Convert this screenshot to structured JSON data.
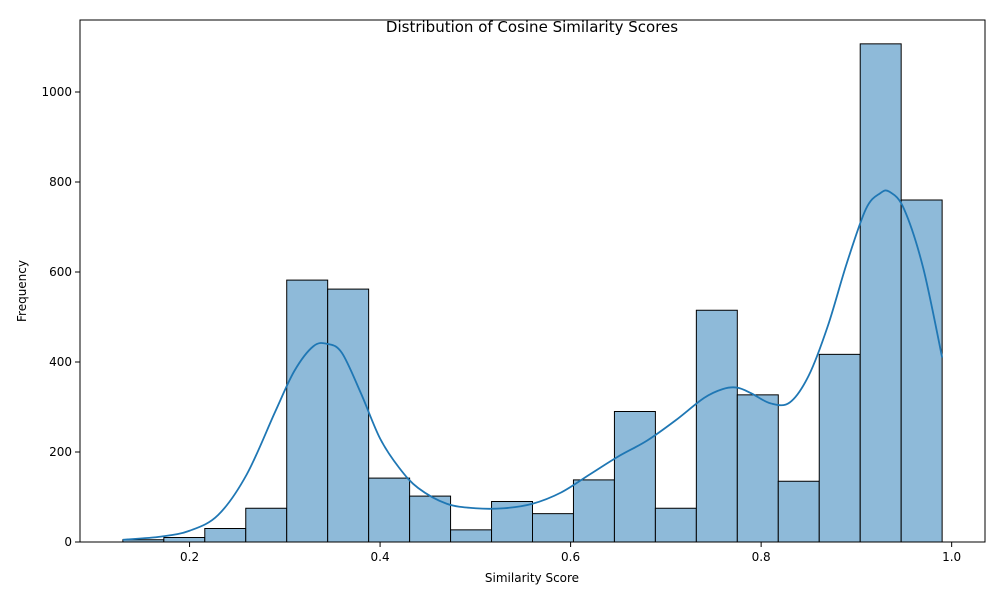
{
  "chart_data": {
    "type": "histogram",
    "title": "Distribution of Cosine Similarity Scores",
    "xlabel": "Similarity Score",
    "ylabel": "Frequency",
    "xlim": [
      0.085,
      1.035
    ],
    "ylim": [
      0,
      1160
    ],
    "xticks": [
      0.2,
      0.4,
      0.6,
      0.8,
      1.0
    ],
    "xtick_labels": [
      "0.2",
      "0.4",
      "0.6",
      "0.8",
      "1.0"
    ],
    "yticks": [
      0,
      200,
      400,
      600,
      800,
      1000
    ],
    "ytick_labels": [
      "0",
      "200",
      "400",
      "600",
      "800",
      "1000"
    ],
    "bar_color": "#8ebad9",
    "kde_color": "#1f77b4",
    "bins": [
      {
        "x0": 0.13,
        "x1": 0.173,
        "count": 5
      },
      {
        "x0": 0.173,
        "x1": 0.216,
        "count": 10
      },
      {
        "x0": 0.216,
        "x1": 0.259,
        "count": 30
      },
      {
        "x0": 0.259,
        "x1": 0.302,
        "count": 75
      },
      {
        "x0": 0.302,
        "x1": 0.345,
        "count": 582
      },
      {
        "x0": 0.345,
        "x1": 0.388,
        "count": 562
      },
      {
        "x0": 0.388,
        "x1": 0.431,
        "count": 142
      },
      {
        "x0": 0.431,
        "x1": 0.474,
        "count": 102
      },
      {
        "x0": 0.474,
        "x1": 0.517,
        "count": 27
      },
      {
        "x0": 0.517,
        "x1": 0.56,
        "count": 90
      },
      {
        "x0": 0.56,
        "x1": 0.603,
        "count": 63
      },
      {
        "x0": 0.603,
        "x1": 0.646,
        "count": 138
      },
      {
        "x0": 0.646,
        "x1": 0.689,
        "count": 290
      },
      {
        "x0": 0.689,
        "x1": 0.732,
        "count": 75
      },
      {
        "x0": 0.732,
        "x1": 0.775,
        "count": 515
      },
      {
        "x0": 0.775,
        "x1": 0.818,
        "count": 327
      },
      {
        "x0": 0.818,
        "x1": 0.861,
        "count": 135
      },
      {
        "x0": 0.861,
        "x1": 0.904,
        "count": 417
      },
      {
        "x0": 0.904,
        "x1": 0.947,
        "count": 1107
      },
      {
        "x0": 0.947,
        "x1": 0.99,
        "count": 760
      }
    ],
    "kde": {
      "x": [
        0.13,
        0.17,
        0.2,
        0.23,
        0.26,
        0.29,
        0.31,
        0.33,
        0.345,
        0.36,
        0.38,
        0.4,
        0.42,
        0.44,
        0.47,
        0.5,
        0.53,
        0.56,
        0.59,
        0.62,
        0.65,
        0.68,
        0.71,
        0.74,
        0.76,
        0.775,
        0.79,
        0.81,
        0.83,
        0.85,
        0.87,
        0.89,
        0.91,
        0.925,
        0.935,
        0.95,
        0.97,
        0.99
      ],
      "y": [
        5,
        12,
        25,
        60,
        150,
        290,
        380,
        435,
        440,
        420,
        330,
        230,
        165,
        120,
        85,
        75,
        75,
        85,
        110,
        150,
        190,
        225,
        270,
        320,
        340,
        343,
        330,
        308,
        310,
        370,
        480,
        620,
        740,
        775,
        778,
        740,
        610,
        410
      ]
    }
  }
}
